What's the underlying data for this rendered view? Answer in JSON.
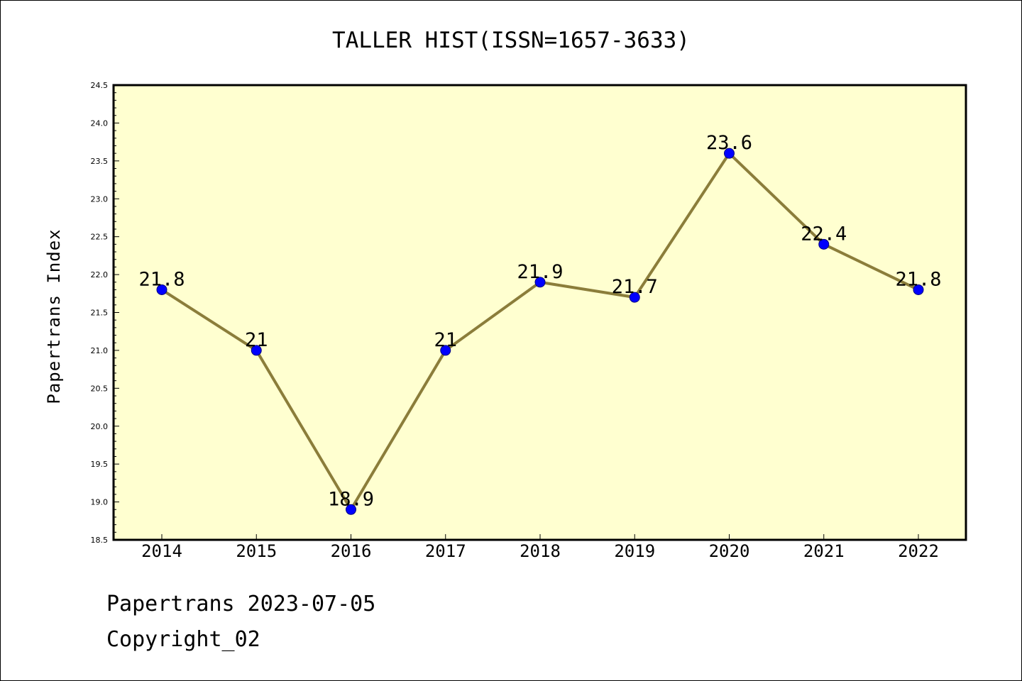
{
  "chart_data": {
    "type": "line",
    "title": "TALLER HIST(ISSN=1657-3633)",
    "xlabel": "",
    "ylabel": "Papertrans Index",
    "categories": [
      "2014",
      "2015",
      "2016",
      "2017",
      "2018",
      "2019",
      "2020",
      "2021",
      "2022"
    ],
    "series": [
      {
        "values": [
          21.8,
          21,
          18.9,
          21,
          21.9,
          21.7,
          23.6,
          22.4,
          21.8
        ],
        "labels": [
          "21.8",
          "21",
          "18.9",
          "21",
          "21.9",
          "21.7",
          "23.6",
          "22.4",
          "21.8"
        ]
      }
    ],
    "ylim": [
      18.5,
      24.5
    ],
    "yticks": [
      "18.5",
      "19.0",
      "19.5",
      "20.0",
      "20.5",
      "21.0",
      "21.5",
      "22.0",
      "22.5",
      "23.0",
      "23.5",
      "24.0",
      "24.5"
    ],
    "grid": false,
    "colors": {
      "plot_background": "#ffffd0",
      "line": "#8b7d3a",
      "marker": "#0000ff",
      "marker_edge": "#000080"
    }
  },
  "footer": {
    "line1": "Papertrans 2023-07-05",
    "line2": "Copyright_02"
  }
}
